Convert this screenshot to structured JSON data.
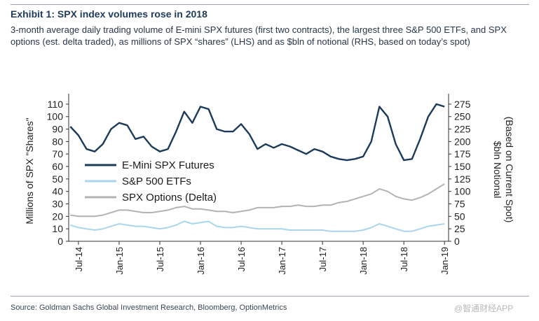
{
  "header": {
    "title": "Exhibit 1: SPX index volumes rose in 2018",
    "subtitle": "3-month average daily trading volume of E-mini SPX futures (first two contracts), the largest three S&P 500 ETFs, and SPX options (est. delta traded), as millions of SPX “shares” (LHS) and as $bln of notional (RHS, based on today’s spot)"
  },
  "footer": {
    "source": "Source: Goldman Sachs Global Investment Research, Bloomberg, OptionMetrics",
    "watermark": "@智通财经APP"
  },
  "colors": {
    "futures": "#1c3b5a",
    "etfs": "#a9d6ec",
    "options": "#b3b3b3",
    "axis": "#333333"
  },
  "chart_data": {
    "type": "line",
    "x": [
      2014.4,
      2014.5,
      2014.6,
      2014.7,
      2014.8,
      2014.9,
      2015.0,
      2015.1,
      2015.2,
      2015.3,
      2015.4,
      2015.5,
      2015.6,
      2015.7,
      2015.8,
      2015.9,
      2016.0,
      2016.1,
      2016.2,
      2016.3,
      2016.4,
      2016.5,
      2016.6,
      2016.7,
      2016.8,
      2016.9,
      2017.0,
      2017.1,
      2017.2,
      2017.3,
      2017.4,
      2017.5,
      2017.6,
      2017.7,
      2017.8,
      2017.9,
      2018.0,
      2018.1,
      2018.2,
      2018.3,
      2018.4,
      2018.5,
      2018.6,
      2018.7,
      2018.8,
      2018.9,
      2019.0
    ],
    "series": [
      {
        "name": "E-Mini SPX Futures",
        "values": [
          92,
          85,
          74,
          72,
          78,
          90,
          95,
          93,
          82,
          84,
          76,
          72,
          74,
          88,
          104,
          95,
          108,
          106,
          90,
          88,
          88,
          94,
          86,
          74,
          78,
          75,
          78,
          76,
          73,
          70,
          74,
          72,
          68,
          66,
          65,
          66,
          68,
          80,
          108,
          100,
          78,
          65,
          66,
          82,
          100,
          110,
          108
        ]
      },
      {
        "name": "S&P 500 ETFs",
        "values": [
          13,
          11,
          10,
          9,
          10,
          12,
          14,
          13,
          12,
          12,
          11,
          10,
          11,
          13,
          16,
          14,
          15,
          16,
          12,
          11,
          11,
          12,
          11,
          10,
          10,
          10,
          10,
          9,
          9,
          9,
          9,
          9,
          8,
          8,
          8,
          8,
          9,
          11,
          14,
          12,
          10,
          8,
          8,
          10,
          12,
          13,
          14
        ]
      },
      {
        "name": "SPX Options (Delta)",
        "values": [
          21,
          20,
          20,
          20,
          21,
          23,
          25,
          25,
          24,
          23,
          23,
          24,
          25,
          27,
          28,
          26,
          26,
          25,
          24,
          24,
          23,
          24,
          25,
          27,
          27,
          27,
          28,
          28,
          29,
          28,
          28,
          29,
          29,
          31,
          32,
          34,
          36,
          38,
          42,
          40,
          36,
          34,
          33,
          35,
          38,
          42,
          46
        ]
      }
    ],
    "title": "",
    "xlabel": "",
    "ylabel": "Millions of SPX \"Shares\"",
    "ylabel_right": "$bln Notional (Based on Current Spot)",
    "ylim": [
      0,
      115
    ],
    "ylim_right": [
      0,
      287.5
    ],
    "yticks": [
      0,
      10,
      20,
      30,
      40,
      50,
      60,
      70,
      80,
      90,
      100,
      110
    ],
    "yticks_right": [
      0,
      25,
      50,
      75,
      100,
      125,
      150,
      175,
      200,
      225,
      250,
      275
    ],
    "xlim": [
      2014.38,
      2019.05
    ],
    "xticks": [
      2014.5,
      2015.0,
      2015.5,
      2016.0,
      2016.5,
      2017.0,
      2017.5,
      2018.0,
      2018.5,
      2019.0
    ],
    "xtick_labels": [
      "Jul-14",
      "Jan-15",
      "Jul-15",
      "Jan-16",
      "Jul-16",
      "Jan-17",
      "Jul-17",
      "Jan-18",
      "Jul-18",
      "Jan-19"
    ],
    "legend_position": "center-left",
    "grid": false
  }
}
